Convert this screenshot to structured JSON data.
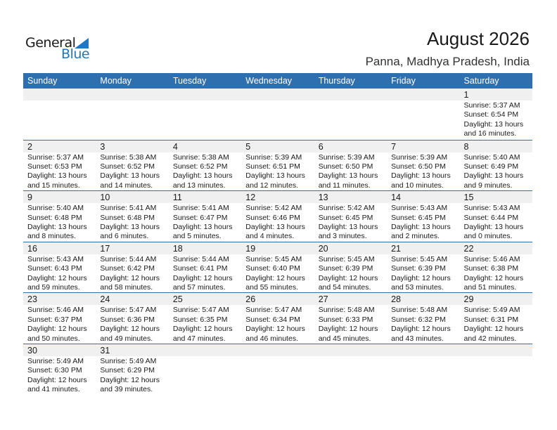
{
  "logo": {
    "general": "General",
    "blue": "Blue"
  },
  "title": "August 2026",
  "location": "Panna, Madhya Pradesh, India",
  "colors": {
    "header": "#2e6fb0",
    "brand_blue": "#1f78c1",
    "daynum_row": "#f0f0f0"
  },
  "weekdays": [
    "Sunday",
    "Monday",
    "Tuesday",
    "Wednesday",
    "Thursday",
    "Friday",
    "Saturday"
  ],
  "weeks": [
    [
      null,
      null,
      null,
      null,
      null,
      null,
      {
        "day": "1",
        "sunrise": "Sunrise: 5:37 AM",
        "sunset": "Sunset: 6:54 PM",
        "daylight": "Daylight: 13 hours",
        "minutes": "and 16 minutes."
      }
    ],
    [
      {
        "day": "2",
        "sunrise": "Sunrise: 5:37 AM",
        "sunset": "Sunset: 6:53 PM",
        "daylight": "Daylight: 13 hours",
        "minutes": "and 15 minutes."
      },
      {
        "day": "3",
        "sunrise": "Sunrise: 5:38 AM",
        "sunset": "Sunset: 6:52 PM",
        "daylight": "Daylight: 13 hours",
        "minutes": "and 14 minutes."
      },
      {
        "day": "4",
        "sunrise": "Sunrise: 5:38 AM",
        "sunset": "Sunset: 6:52 PM",
        "daylight": "Daylight: 13 hours",
        "minutes": "and 13 minutes."
      },
      {
        "day": "5",
        "sunrise": "Sunrise: 5:39 AM",
        "sunset": "Sunset: 6:51 PM",
        "daylight": "Daylight: 13 hours",
        "minutes": "and 12 minutes."
      },
      {
        "day": "6",
        "sunrise": "Sunrise: 5:39 AM",
        "sunset": "Sunset: 6:50 PM",
        "daylight": "Daylight: 13 hours",
        "minutes": "and 11 minutes."
      },
      {
        "day": "7",
        "sunrise": "Sunrise: 5:39 AM",
        "sunset": "Sunset: 6:50 PM",
        "daylight": "Daylight: 13 hours",
        "minutes": "and 10 minutes."
      },
      {
        "day": "8",
        "sunrise": "Sunrise: 5:40 AM",
        "sunset": "Sunset: 6:49 PM",
        "daylight": "Daylight: 13 hours",
        "minutes": "and 9 minutes."
      }
    ],
    [
      {
        "day": "9",
        "sunrise": "Sunrise: 5:40 AM",
        "sunset": "Sunset: 6:48 PM",
        "daylight": "Daylight: 13 hours",
        "minutes": "and 8 minutes."
      },
      {
        "day": "10",
        "sunrise": "Sunrise: 5:41 AM",
        "sunset": "Sunset: 6:48 PM",
        "daylight": "Daylight: 13 hours",
        "minutes": "and 6 minutes."
      },
      {
        "day": "11",
        "sunrise": "Sunrise: 5:41 AM",
        "sunset": "Sunset: 6:47 PM",
        "daylight": "Daylight: 13 hours",
        "minutes": "and 5 minutes."
      },
      {
        "day": "12",
        "sunrise": "Sunrise: 5:42 AM",
        "sunset": "Sunset: 6:46 PM",
        "daylight": "Daylight: 13 hours",
        "minutes": "and 4 minutes."
      },
      {
        "day": "13",
        "sunrise": "Sunrise: 5:42 AM",
        "sunset": "Sunset: 6:45 PM",
        "daylight": "Daylight: 13 hours",
        "minutes": "and 3 minutes."
      },
      {
        "day": "14",
        "sunrise": "Sunrise: 5:43 AM",
        "sunset": "Sunset: 6:45 PM",
        "daylight": "Daylight: 13 hours",
        "minutes": "and 2 minutes."
      },
      {
        "day": "15",
        "sunrise": "Sunrise: 5:43 AM",
        "sunset": "Sunset: 6:44 PM",
        "daylight": "Daylight: 13 hours",
        "minutes": "and 0 minutes."
      }
    ],
    [
      {
        "day": "16",
        "sunrise": "Sunrise: 5:43 AM",
        "sunset": "Sunset: 6:43 PM",
        "daylight": "Daylight: 12 hours",
        "minutes": "and 59 minutes."
      },
      {
        "day": "17",
        "sunrise": "Sunrise: 5:44 AM",
        "sunset": "Sunset: 6:42 PM",
        "daylight": "Daylight: 12 hours",
        "minutes": "and 58 minutes."
      },
      {
        "day": "18",
        "sunrise": "Sunrise: 5:44 AM",
        "sunset": "Sunset: 6:41 PM",
        "daylight": "Daylight: 12 hours",
        "minutes": "and 57 minutes."
      },
      {
        "day": "19",
        "sunrise": "Sunrise: 5:45 AM",
        "sunset": "Sunset: 6:40 PM",
        "daylight": "Daylight: 12 hours",
        "minutes": "and 55 minutes."
      },
      {
        "day": "20",
        "sunrise": "Sunrise: 5:45 AM",
        "sunset": "Sunset: 6:39 PM",
        "daylight": "Daylight: 12 hours",
        "minutes": "and 54 minutes."
      },
      {
        "day": "21",
        "sunrise": "Sunrise: 5:45 AM",
        "sunset": "Sunset: 6:39 PM",
        "daylight": "Daylight: 12 hours",
        "minutes": "and 53 minutes."
      },
      {
        "day": "22",
        "sunrise": "Sunrise: 5:46 AM",
        "sunset": "Sunset: 6:38 PM",
        "daylight": "Daylight: 12 hours",
        "minutes": "and 51 minutes."
      }
    ],
    [
      {
        "day": "23",
        "sunrise": "Sunrise: 5:46 AM",
        "sunset": "Sunset: 6:37 PM",
        "daylight": "Daylight: 12 hours",
        "minutes": "and 50 minutes."
      },
      {
        "day": "24",
        "sunrise": "Sunrise: 5:47 AM",
        "sunset": "Sunset: 6:36 PM",
        "daylight": "Daylight: 12 hours",
        "minutes": "and 49 minutes."
      },
      {
        "day": "25",
        "sunrise": "Sunrise: 5:47 AM",
        "sunset": "Sunset: 6:35 PM",
        "daylight": "Daylight: 12 hours",
        "minutes": "and 47 minutes."
      },
      {
        "day": "26",
        "sunrise": "Sunrise: 5:47 AM",
        "sunset": "Sunset: 6:34 PM",
        "daylight": "Daylight: 12 hours",
        "minutes": "and 46 minutes."
      },
      {
        "day": "27",
        "sunrise": "Sunrise: 5:48 AM",
        "sunset": "Sunset: 6:33 PM",
        "daylight": "Daylight: 12 hours",
        "minutes": "and 45 minutes."
      },
      {
        "day": "28",
        "sunrise": "Sunrise: 5:48 AM",
        "sunset": "Sunset: 6:32 PM",
        "daylight": "Daylight: 12 hours",
        "minutes": "and 43 minutes."
      },
      {
        "day": "29",
        "sunrise": "Sunrise: 5:49 AM",
        "sunset": "Sunset: 6:31 PM",
        "daylight": "Daylight: 12 hours",
        "minutes": "and 42 minutes."
      }
    ],
    [
      {
        "day": "30",
        "sunrise": "Sunrise: 5:49 AM",
        "sunset": "Sunset: 6:30 PM",
        "daylight": "Daylight: 12 hours",
        "minutes": "and 41 minutes."
      },
      {
        "day": "31",
        "sunrise": "Sunrise: 5:49 AM",
        "sunset": "Sunset: 6:29 PM",
        "daylight": "Daylight: 12 hours",
        "minutes": "and 39 minutes."
      },
      null,
      null,
      null,
      null,
      null
    ]
  ]
}
